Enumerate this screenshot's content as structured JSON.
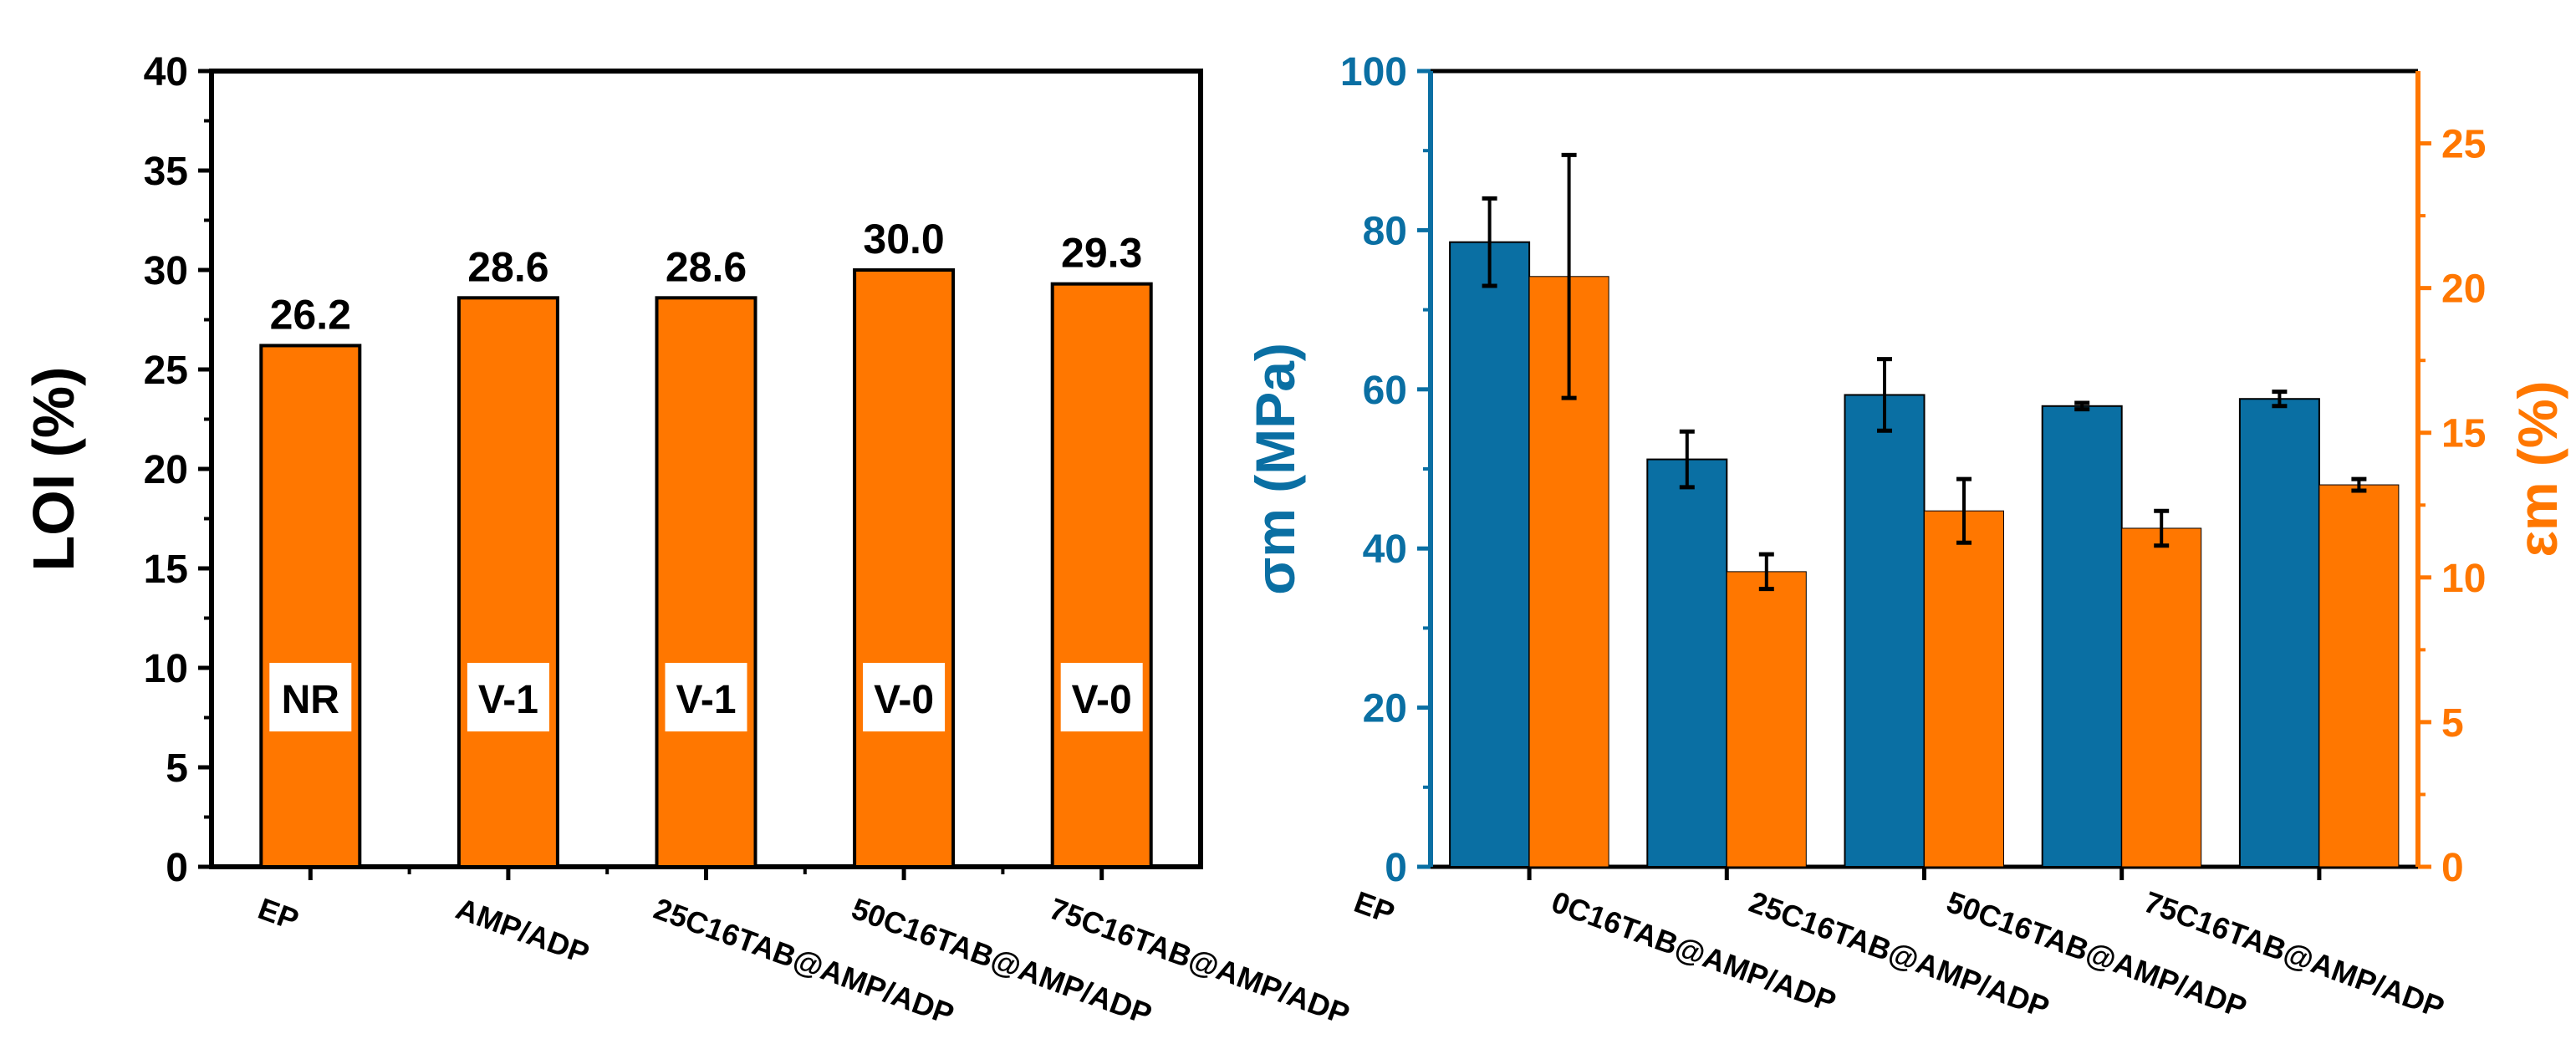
{
  "colors": {
    "orange": "#FF7700",
    "blue": "#0A6FA3",
    "axis": "#000000",
    "rating_box": "#FFFFFF"
  },
  "chart_data": [
    {
      "id": "loi",
      "type": "bar",
      "title": "",
      "xlabel": "",
      "ylabel": "LOI (%)",
      "ylim": [
        0,
        40
      ],
      "yticks": [
        "0",
        "5",
        "10",
        "15",
        "20",
        "25",
        "30",
        "35",
        "40"
      ],
      "grid": false,
      "categories": [
        "EP",
        "AMP/ADP",
        "25C16TAB@AMP/ADP",
        "50C16TAB@AMP/ADP",
        "75C16TAB@AMP/ADP"
      ],
      "series": [
        {
          "values": [
            26.2,
            28.6,
            28.6,
            30.0,
            29.3
          ],
          "value_labels": [
            "26.2",
            "28.6",
            "28.6",
            "30.0",
            "29.3"
          ],
          "color": "#FF7700"
        }
      ],
      "annotations": [
        "NR",
        "V-1",
        "V-1",
        "V-0",
        "V-0"
      ]
    },
    {
      "id": "mechanical",
      "type": "bar",
      "title": "",
      "xlabel": "",
      "ylabel_left": "σm (MPa)",
      "ylabel_right": "εm (%)",
      "ylim_left": [
        0,
        100
      ],
      "ylim_right": [
        0,
        27.5
      ],
      "yticks_left": [
        "0",
        "20",
        "40",
        "60",
        "80",
        "100"
      ],
      "yticks_right": [
        "0",
        "5",
        "10",
        "15",
        "20",
        "25"
      ],
      "grid": false,
      "categories": [
        "EP",
        "0C16TAB@AMP/ADP",
        "25C16TAB@AMP/ADP",
        "50C16TAB@AMP/ADP",
        "75C16TAB@AMP/ADP"
      ],
      "series": [
        {
          "axis": "left",
          "color": "#0A6FA3",
          "values": [
            78.5,
            51.2,
            59.3,
            57.9,
            58.8
          ],
          "errors": [
            5.5,
            3.5,
            4.5,
            0.4,
            0.9
          ]
        },
        {
          "axis": "right",
          "color": "#FF7700",
          "values": [
            20.4,
            10.2,
            12.3,
            11.7,
            13.2
          ],
          "errors": [
            4.2,
            0.6,
            1.1,
            0.6,
            0.2
          ]
        }
      ]
    }
  ]
}
